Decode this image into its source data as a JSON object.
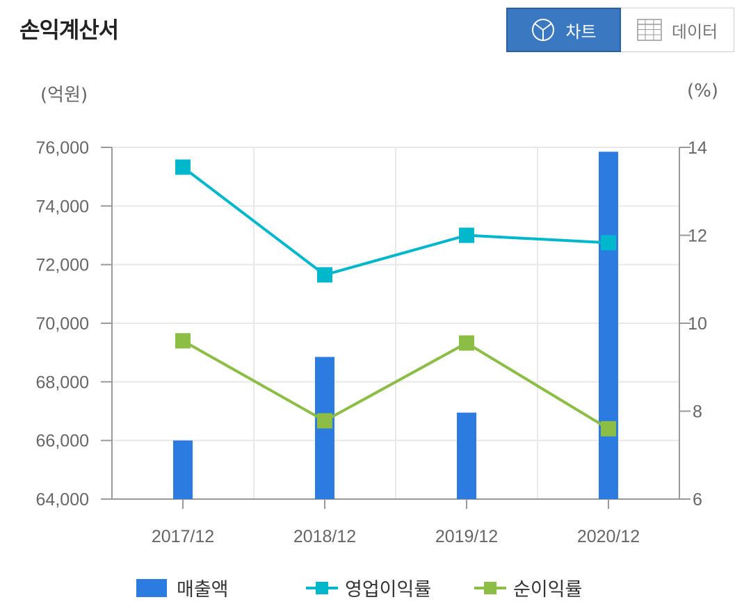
{
  "header": {
    "title": "손익계산서",
    "chart_button_label": "차트",
    "data_button_label": "데이터"
  },
  "colors": {
    "bar": "#2b7be0",
    "operating_margin": "#00b7cc",
    "net_margin": "#8cbd45",
    "active_button": "#3a78c2"
  },
  "chart_data": {
    "type": "bar+line",
    "categories": [
      "2017/12",
      "2018/12",
      "2019/12",
      "2020/12"
    ],
    "left_axis": {
      "unit_label": "(억원)",
      "ylim": [
        64000,
        76000
      ],
      "ticks": [
        64000,
        66000,
        68000,
        70000,
        72000,
        74000,
        76000
      ],
      "tick_labels": [
        "64,000",
        "66,000",
        "68,000",
        "70,000",
        "72,000",
        "74,000",
        "76,000"
      ]
    },
    "right_axis": {
      "unit_label": "(%)",
      "ylim": [
        6,
        14
      ],
      "ticks": [
        6,
        8,
        10,
        12,
        14
      ],
      "tick_labels": [
        "6",
        "8",
        "10",
        "12",
        "14"
      ]
    },
    "series": [
      {
        "name": "매출액",
        "type": "bar",
        "axis": "left",
        "values": [
          66000,
          68850,
          66950,
          75850
        ]
      },
      {
        "name": "영업이익률",
        "type": "line",
        "axis": "right",
        "values": [
          13.55,
          11.1,
          12.0,
          11.83
        ]
      },
      {
        "name": "순이익률",
        "type": "line",
        "axis": "right",
        "values": [
          9.6,
          7.78,
          9.55,
          7.6
        ]
      }
    ],
    "grid": true,
    "legend": "bottom"
  }
}
